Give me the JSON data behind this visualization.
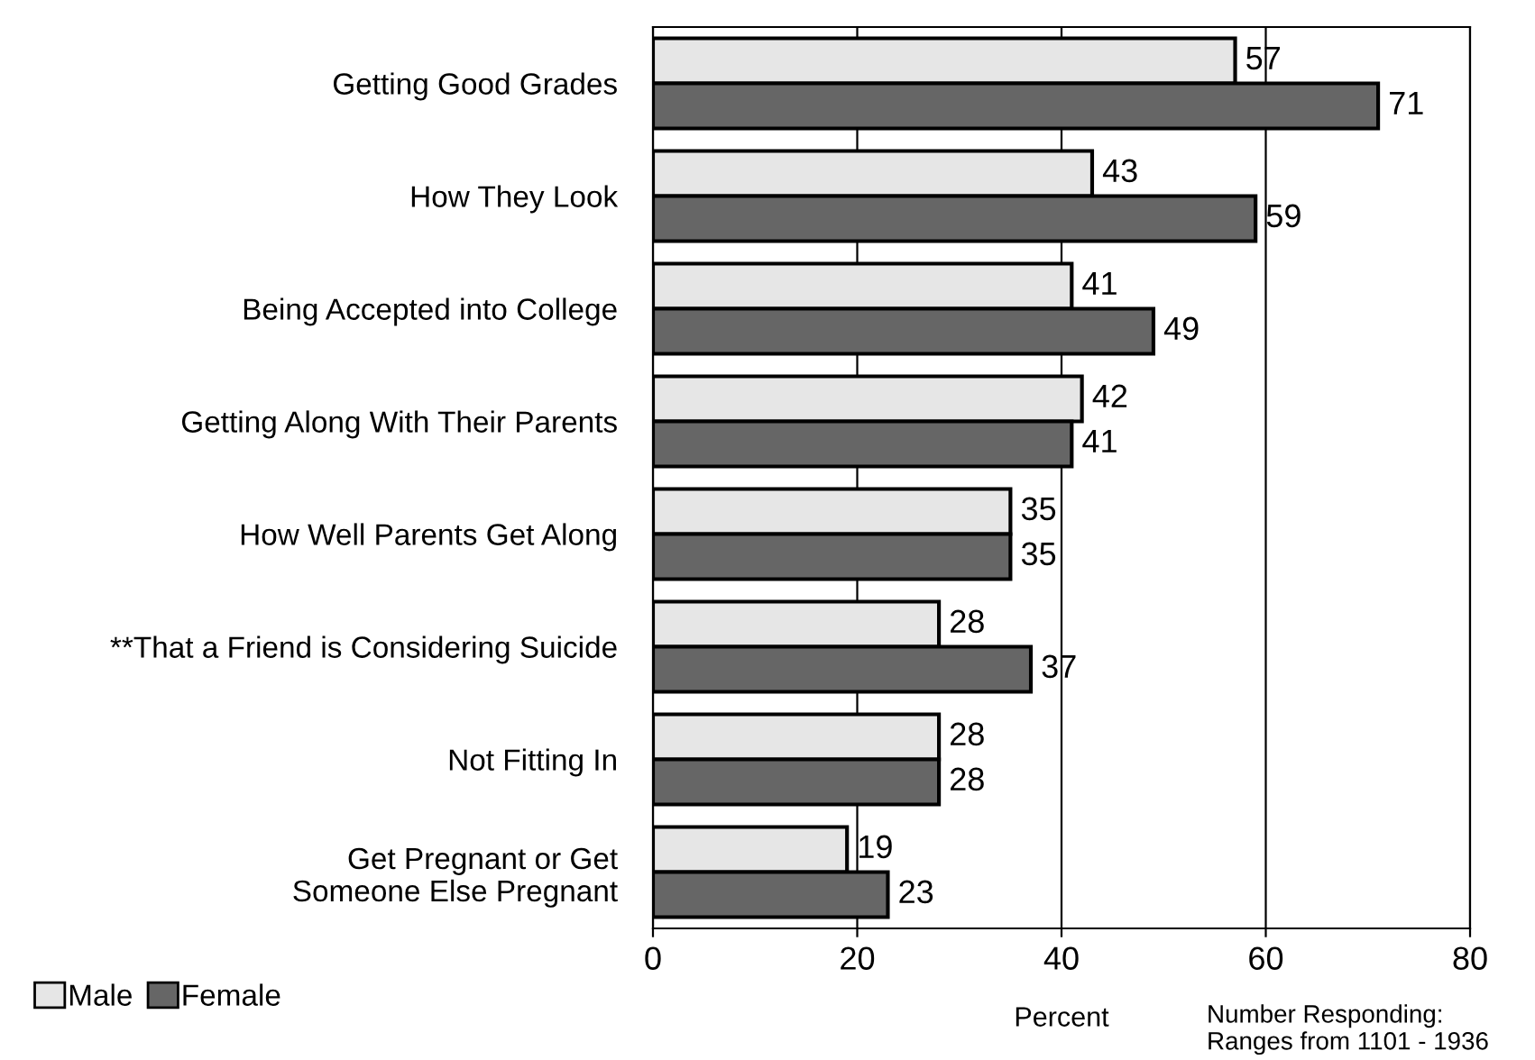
{
  "chart_data": {
    "type": "bar",
    "orientation": "horizontal",
    "categories": [
      "Getting Good Grades",
      "How They Look",
      "Being Accepted into College",
      "Getting Along With Their Parents",
      "How Well Parents Get Along",
      "**That a Friend is Considering Suicide",
      "Not Fitting In",
      "Get Pregnant or Get\nSomeone Else Pregnant"
    ],
    "series": [
      {
        "name": "Male",
        "color": "#e6e6e6",
        "values": [
          57,
          43,
          41,
          42,
          35,
          28,
          28,
          19
        ]
      },
      {
        "name": "Female",
        "color": "#666666",
        "values": [
          71,
          59,
          49,
          41,
          35,
          37,
          28,
          23
        ]
      }
    ],
    "xlabel": "Percent",
    "xlim": [
      0,
      80
    ],
    "xticks": [
      0,
      20,
      40,
      60,
      80
    ],
    "grid": "x",
    "data_labels": true,
    "legend": "bottom left",
    "annotations": [
      "Number Responding:\nRanges from 1101 - 1936"
    ]
  }
}
